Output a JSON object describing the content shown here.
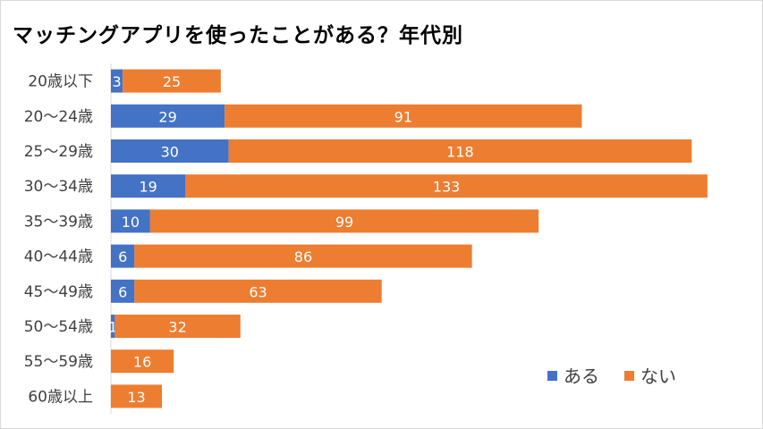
{
  "chart_data": {
    "type": "bar",
    "orientation": "horizontal",
    "stacked": true,
    "title": "マッチングアプリを使ったことがある？年代別",
    "categories": [
      "20歳以下",
      "20～24歳",
      "25～29歳",
      "30～34歳",
      "35～39歳",
      "40～44歳",
      "45～49歳",
      "50～54歳",
      "55～59歳",
      "60歳以上"
    ],
    "series": [
      {
        "name": "ある",
        "color": "#4472c4",
        "values": [
          3,
          29,
          30,
          19,
          10,
          6,
          6,
          1,
          0,
          0
        ]
      },
      {
        "name": "ない",
        "color": "#ed7d31",
        "values": [
          25,
          91,
          118,
          133,
          99,
          86,
          63,
          32,
          16,
          13
        ]
      }
    ],
    "xlim": [
      0,
      155
    ],
    "grid": false,
    "legend_position": "bottom-right"
  }
}
